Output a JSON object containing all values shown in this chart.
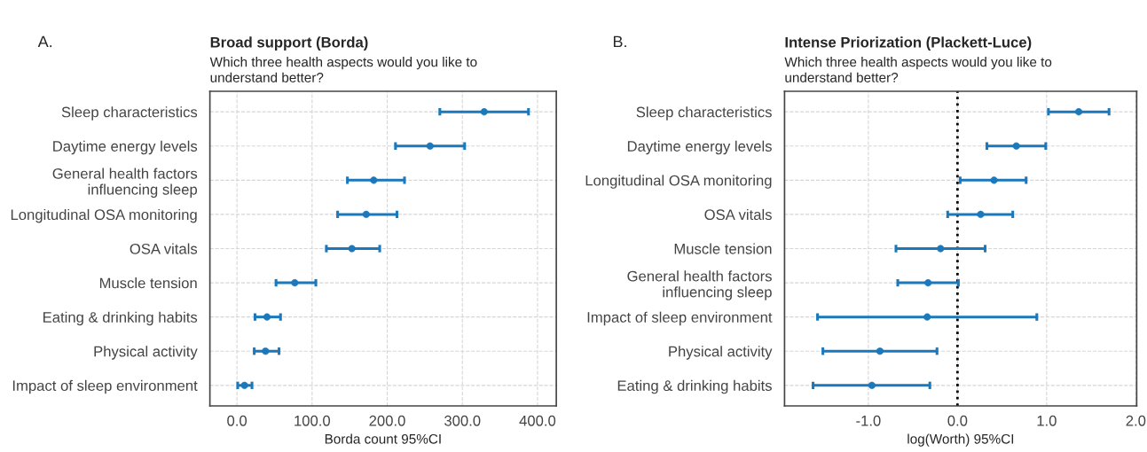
{
  "chart_data": [
    {
      "type": "scatter",
      "orientation": "horizontal",
      "title": "Broad support (Borda)",
      "subtitle": "Which three health aspects would you like to\nunderstand better?",
      "xlabel": "Borda count 95%CI",
      "annotations": [
        "A."
      ],
      "categories": [
        "Sleep characteristics",
        "Daytime energy levels",
        "General health factors\ninfluencing sleep",
        "Longitudinal OSA monitoring",
        "OSA vitals",
        "Muscle tension",
        "Eating & drinking habits",
        "Physical activity",
        "Impact of sleep environment"
      ],
      "color": "#1b78bb",
      "values": [
        329,
        257,
        182,
        172,
        153,
        77,
        40,
        38,
        10
      ],
      "errors": [
        [
          270,
          388
        ],
        [
          211,
          303
        ],
        [
          147,
          223
        ],
        [
          134,
          213
        ],
        [
          119,
          190
        ],
        [
          52,
          105
        ],
        [
          24,
          58
        ],
        [
          23,
          56
        ],
        [
          1,
          20
        ]
      ],
      "xlim": [
        -36,
        425
      ],
      "xticks": [
        {
          "value": 0,
          "label": "0.0"
        },
        {
          "value": 100,
          "label": "100.0"
        },
        {
          "value": 200,
          "label": "200.0"
        },
        {
          "value": 300,
          "label": "300.0"
        },
        {
          "value": 400,
          "label": "400.0"
        }
      ],
      "grid": true,
      "marker": "circle"
    },
    {
      "type": "scatter",
      "orientation": "horizontal",
      "title": "Intense Priorization (Plackett-Luce)",
      "subtitle": "Which three health aspects would you like to\nunderstand better?",
      "xlabel": "log(Worth) 95%CI",
      "annotations": [
        "B."
      ],
      "categories": [
        "Sleep characteristics",
        "Daytime energy levels",
        "Longitudinal OSA monitoring",
        "OSA vitals",
        "Muscle tension",
        "General health factors\ninfluencing sleep",
        "Impact of sleep environment",
        "Physical activity",
        "Eating & drinking habits"
      ],
      "color": "#1b78bb",
      "values": [
        1.36,
        0.66,
        0.41,
        0.26,
        -0.19,
        -0.33,
        -0.34,
        -0.87,
        -0.96
      ],
      "errors": [
        [
          1.02,
          1.7
        ],
        [
          0.33,
          0.99
        ],
        [
          0.03,
          0.77
        ],
        [
          -0.11,
          0.62
        ],
        [
          -0.69,
          0.31
        ],
        [
          -0.67,
          0.01
        ],
        [
          -1.57,
          0.89
        ],
        [
          -1.51,
          -0.23
        ],
        [
          -1.62,
          -0.31
        ]
      ],
      "xlim": [
        -1.94,
        2.01
      ],
      "xticks": [
        {
          "value": -1,
          "label": "-1.0"
        },
        {
          "value": 0,
          "label": "0.0"
        },
        {
          "value": 1,
          "label": "1.0"
        },
        {
          "value": 2,
          "label": "2.0"
        }
      ],
      "ref_lines": [
        {
          "axis": "x",
          "value": 0,
          "color": "#000000",
          "line_style": "dotted"
        }
      ],
      "grid": true,
      "marker": "circle"
    }
  ]
}
